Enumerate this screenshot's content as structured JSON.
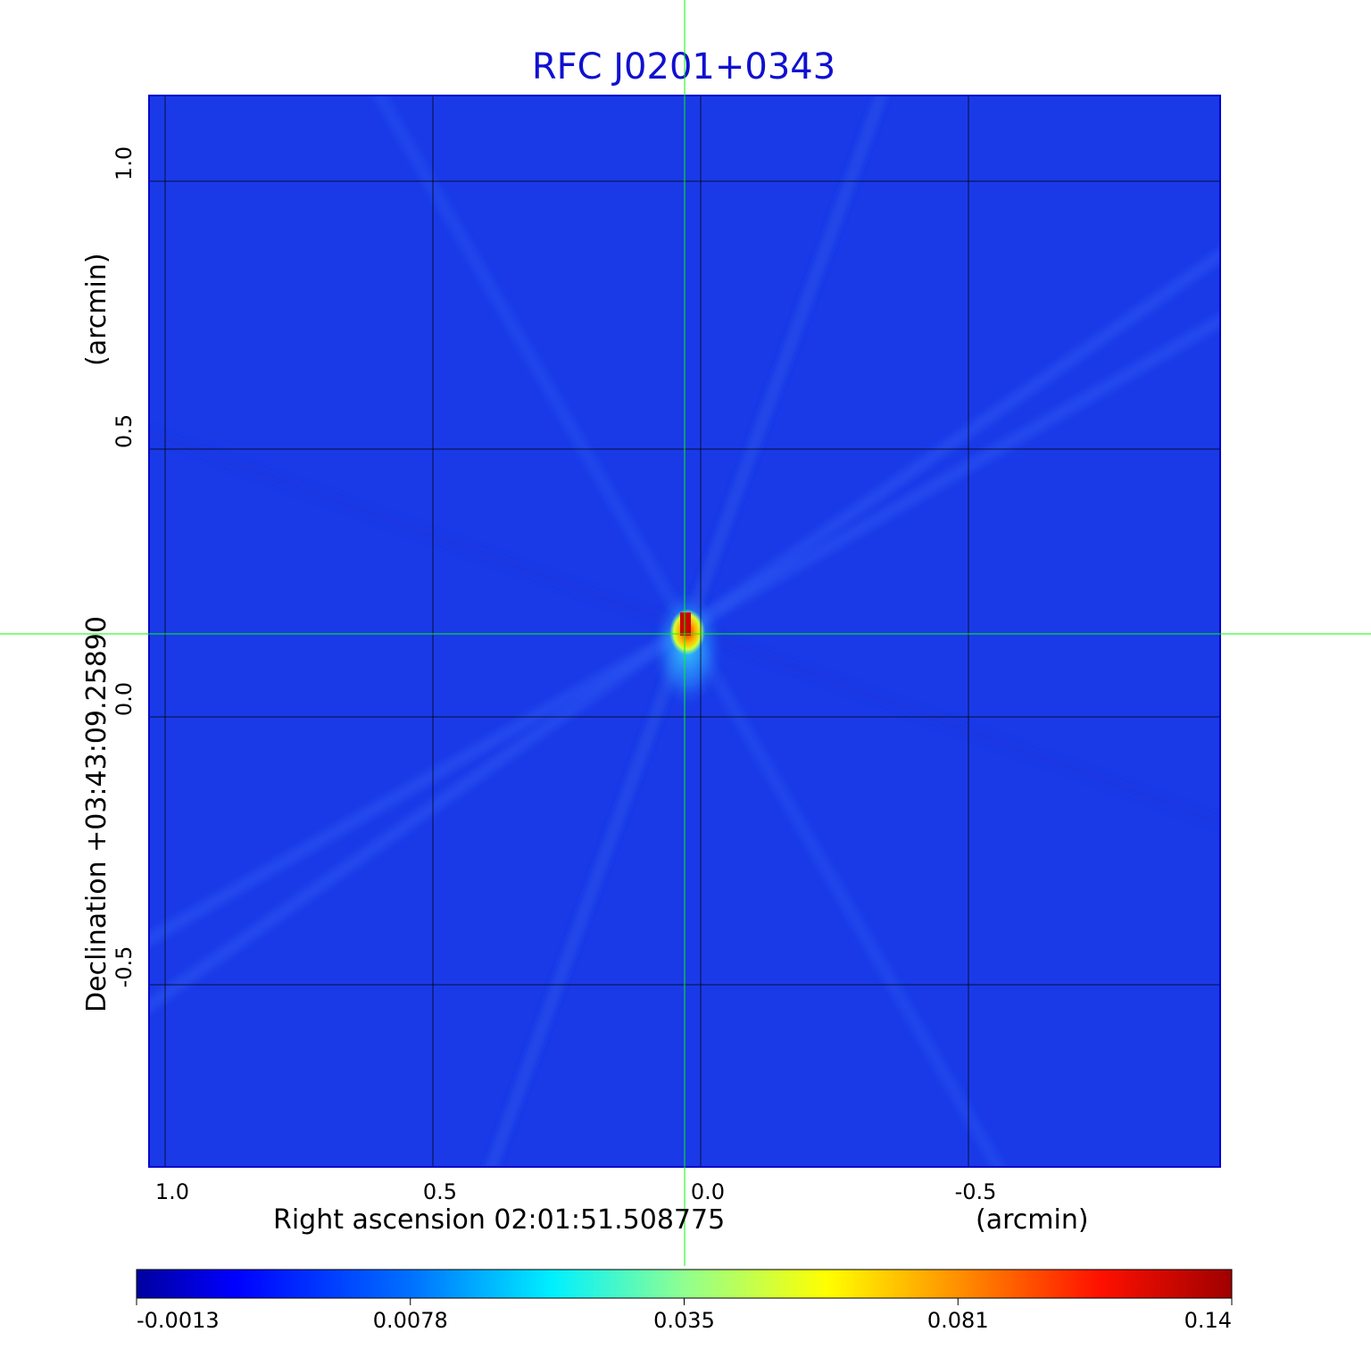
{
  "chart_data": {
    "type": "heatmap",
    "title": "RFC J0201+0343",
    "xlabel": "Right ascension  02:01:51.508775",
    "xlabel_unit": "(arcmin)",
    "ylabel": "Declination  +03:43:09.25890",
    "ylabel_unit": "(arcmin)",
    "x_ticks": [
      1.0,
      0.5,
      0.0,
      -0.5
    ],
    "x_tick_labels": [
      "1.0",
      "0.5",
      "0.0",
      "-0.5"
    ],
    "y_ticks": [
      1.0,
      0.5,
      0.0,
      -0.5
    ],
    "y_tick_labels": [
      "1.0",
      "0.5",
      "0.0",
      "-0.5"
    ],
    "xlim": [
      1.03,
      -0.97
    ],
    "ylim": [
      -0.84,
      1.16
    ],
    "x_reversed": true,
    "grid": true,
    "crosshair": {
      "x": 0.03,
      "y": 0.155,
      "color": "#00ff00"
    },
    "source_peak": {
      "x": 0.025,
      "y": 0.165,
      "value": 0.14
    },
    "colormap": "jet",
    "colorbar": {
      "placement": "bottom",
      "tick_labels": [
        "-0.0013",
        "0.0078",
        "0.035",
        "0.081",
        "0.14"
      ],
      "tick_values": [
        -0.0013,
        0.0078,
        0.035,
        0.081,
        0.14
      ],
      "range": [
        -0.0013,
        0.14
      ],
      "scale": "sqrt"
    },
    "title_color": "#1010d0",
    "background_color": "#1a3ae8"
  }
}
